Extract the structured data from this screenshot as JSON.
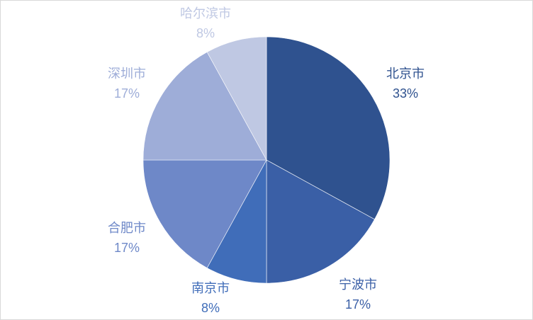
{
  "chart_data": {
    "type": "pie",
    "title": "",
    "start_angle_deg": 0,
    "direction": "clockwise",
    "legend": "none",
    "slices": [
      {
        "label": "北京市",
        "value": 33,
        "value_label": "33%",
        "color": "#2F528F"
      },
      {
        "label": "宁波市",
        "value": 17,
        "value_label": "17%",
        "color": "#3A5FA6"
      },
      {
        "label": "南京市",
        "value": 8,
        "value_label": "8%",
        "color": "#406DB9"
      },
      {
        "label": "合肥市",
        "value": 17,
        "value_label": "17%",
        "color": "#6E88C8"
      },
      {
        "label": "深圳市",
        "value": 17,
        "value_label": "17%",
        "color": "#9EADD8"
      },
      {
        "label": "哈尔滨市",
        "value": 8,
        "value_label": "8%",
        "color": "#BFC8E3"
      }
    ]
  }
}
